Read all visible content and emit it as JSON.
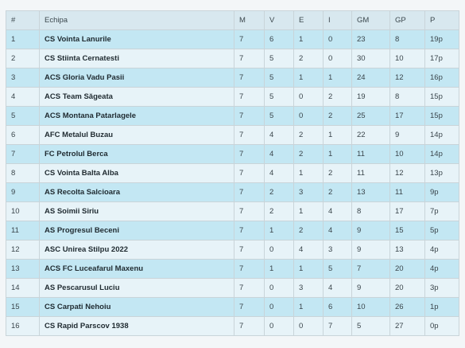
{
  "table": {
    "headers": [
      "#",
      "Echipa",
      "M",
      "V",
      "E",
      "I",
      "GM",
      "GP",
      "P"
    ],
    "rows": [
      {
        "pos": "1",
        "team": "CS Vointa Lanurile",
        "m": "7",
        "v": "6",
        "e": "1",
        "i": "0",
        "gm": "23",
        "gp": "8",
        "p": "19p"
      },
      {
        "pos": "2",
        "team": "CS Stiinta Cernatesti",
        "m": "7",
        "v": "5",
        "e": "2",
        "i": "0",
        "gm": "30",
        "gp": "10",
        "p": "17p"
      },
      {
        "pos": "3",
        "team": "ACS Gloria Vadu Pasii",
        "m": "7",
        "v": "5",
        "e": "1",
        "i": "1",
        "gm": "24",
        "gp": "12",
        "p": "16p"
      },
      {
        "pos": "4",
        "team": "ACS Team Săgeata",
        "m": "7",
        "v": "5",
        "e": "0",
        "i": "2",
        "gm": "19",
        "gp": "8",
        "p": "15p"
      },
      {
        "pos": "5",
        "team": "ACS Montana Patarlagele",
        "m": "7",
        "v": "5",
        "e": "0",
        "i": "2",
        "gm": "25",
        "gp": "17",
        "p": "15p"
      },
      {
        "pos": "6",
        "team": "AFC Metalul Buzau",
        "m": "7",
        "v": "4",
        "e": "2",
        "i": "1",
        "gm": "22",
        "gp": "9",
        "p": "14p"
      },
      {
        "pos": "7",
        "team": "FC Petrolul Berca",
        "m": "7",
        "v": "4",
        "e": "2",
        "i": "1",
        "gm": "11",
        "gp": "10",
        "p": "14p"
      },
      {
        "pos": "8",
        "team": "CS Vointa Balta Alba",
        "m": "7",
        "v": "4",
        "e": "1",
        "i": "2",
        "gm": "11",
        "gp": "12",
        "p": "13p"
      },
      {
        "pos": "9",
        "team": "AS Recolta Salcioara",
        "m": "7",
        "v": "2",
        "e": "3",
        "i": "2",
        "gm": "13",
        "gp": "11",
        "p": "9p"
      },
      {
        "pos": "10",
        "team": "AS Soimii Siriu",
        "m": "7",
        "v": "2",
        "e": "1",
        "i": "4",
        "gm": "8",
        "gp": "17",
        "p": "7p"
      },
      {
        "pos": "11",
        "team": "AS Progresul Beceni",
        "m": "7",
        "v": "1",
        "e": "2",
        "i": "4",
        "gm": "9",
        "gp": "15",
        "p": "5p"
      },
      {
        "pos": "12",
        "team": "ASC Unirea Stilpu 2022",
        "m": "7",
        "v": "0",
        "e": "4",
        "i": "3",
        "gm": "9",
        "gp": "13",
        "p": "4p"
      },
      {
        "pos": "13",
        "team": "ACS FC Luceafarul Maxenu",
        "m": "7",
        "v": "1",
        "e": "1",
        "i": "5",
        "gm": "7",
        "gp": "20",
        "p": "4p"
      },
      {
        "pos": "14",
        "team": "AS Pescarusul Luciu",
        "m": "7",
        "v": "0",
        "e": "3",
        "i": "4",
        "gm": "9",
        "gp": "20",
        "p": "3p"
      },
      {
        "pos": "15",
        "team": "CS Carpati Nehoiu",
        "m": "7",
        "v": "0",
        "e": "1",
        "i": "6",
        "gm": "10",
        "gp": "26",
        "p": "1p"
      },
      {
        "pos": "16",
        "team": "CS Rapid Parscov 1938",
        "m": "7",
        "v": "0",
        "e": "0",
        "i": "7",
        "gm": "5",
        "gp": "27",
        "p": "0p"
      }
    ]
  }
}
